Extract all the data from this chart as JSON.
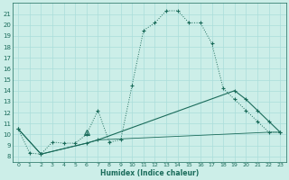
{
  "xlabel": "Humidex (Indice chaleur)",
  "bg_color": "#cceee8",
  "grid_color": "#aaddda",
  "line_color": "#1a6b5a",
  "xlim": [
    -0.5,
    23.5
  ],
  "ylim": [
    7.5,
    22
  ],
  "xticks": [
    0,
    1,
    2,
    3,
    4,
    5,
    6,
    7,
    8,
    9,
    10,
    11,
    12,
    13,
    14,
    15,
    16,
    17,
    18,
    19,
    20,
    21,
    22,
    23
  ],
  "yticks": [
    8,
    9,
    10,
    11,
    12,
    13,
    14,
    15,
    16,
    17,
    18,
    19,
    20,
    21
  ],
  "line1": {
    "x": [
      0,
      1,
      2,
      3,
      4,
      5,
      6,
      7,
      8,
      9,
      10,
      11,
      12,
      13,
      14,
      15,
      16,
      17,
      18,
      19,
      20,
      21,
      22,
      23
    ],
    "y": [
      10.5,
      8.3,
      8.2,
      9.3,
      9.2,
      9.2,
      10.0,
      12.2,
      9.3,
      9.5,
      14.5,
      19.5,
      20.2,
      21.3,
      21.3,
      20.2,
      20.2,
      18.3,
      14.2,
      13.2,
      12.2,
      11.2,
      10.2,
      10.2
    ]
  },
  "line2": {
    "x": [
      0,
      2,
      6,
      7,
      19,
      20,
      21,
      22,
      23
    ],
    "y": [
      10.5,
      8.2,
      9.2,
      9.5,
      14.0,
      13.2,
      12.2,
      11.2,
      10.2
    ]
  },
  "line3": {
    "x": [
      0,
      2,
      6,
      7,
      22,
      23
    ],
    "y": [
      10.5,
      8.2,
      9.2,
      9.5,
      10.2,
      10.2
    ]
  },
  "triangle_x": [
    6
  ],
  "triangle_y": [
    10.2
  ]
}
